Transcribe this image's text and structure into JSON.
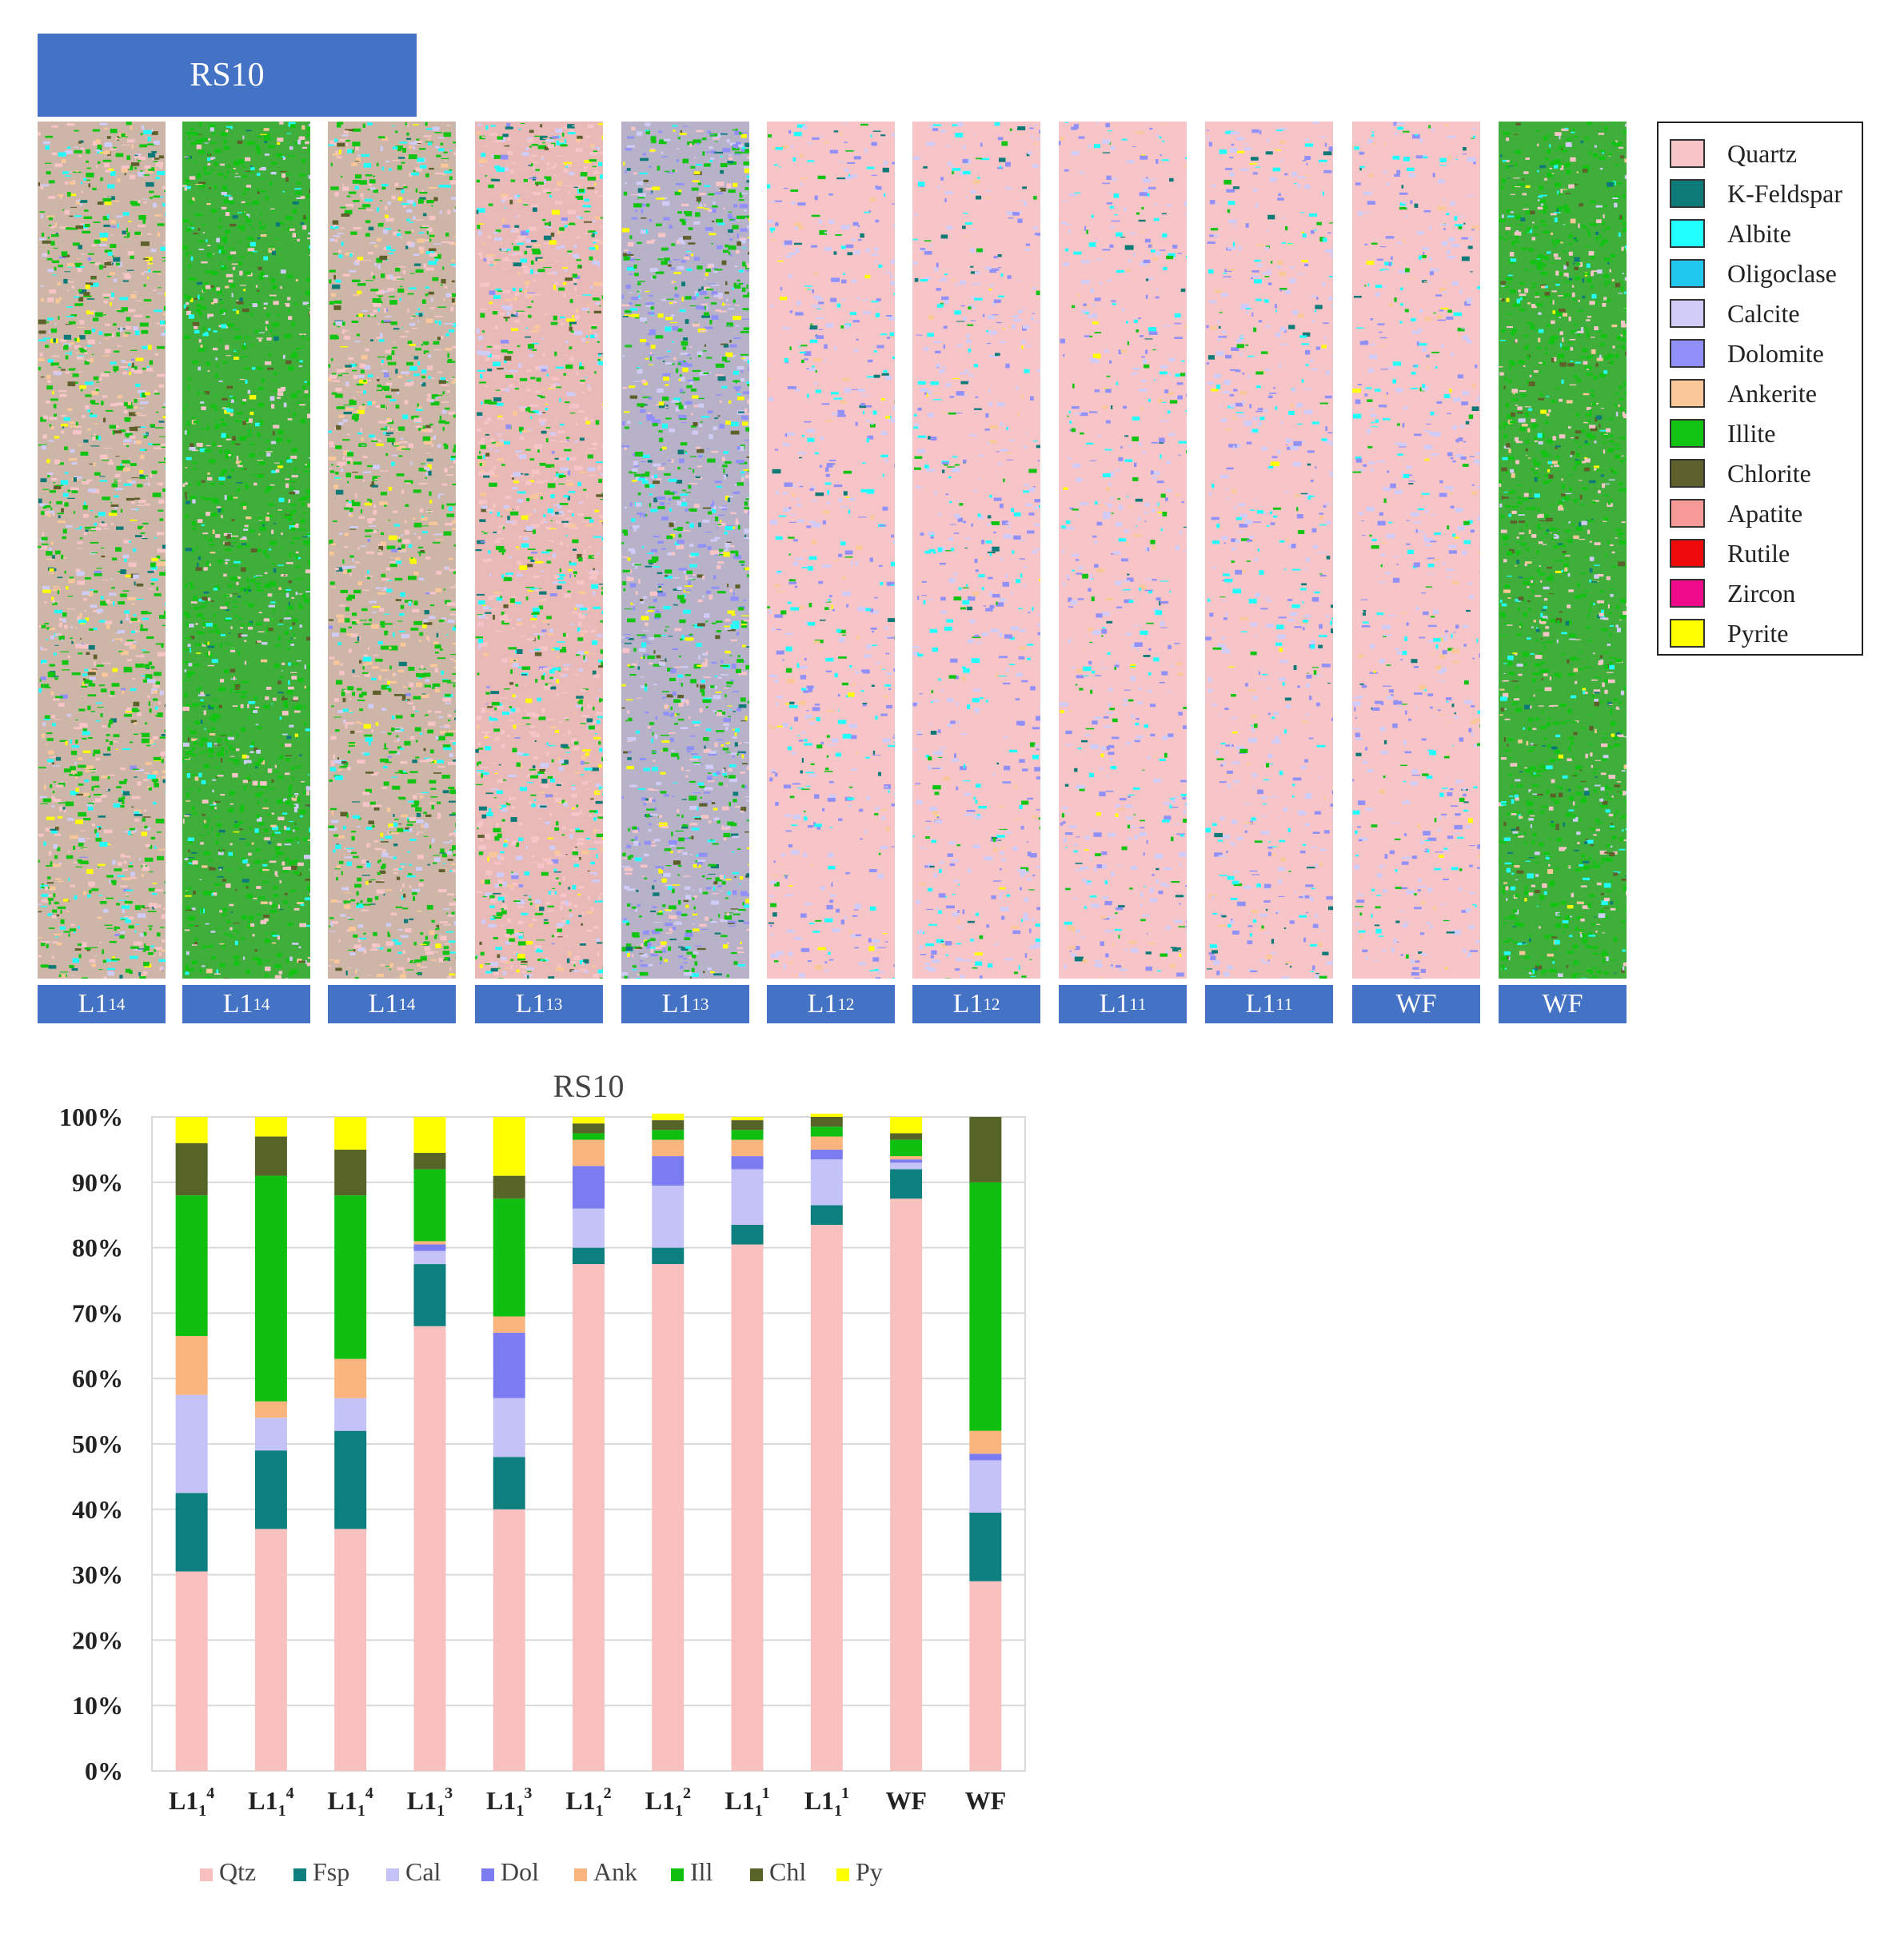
{
  "header": {
    "title": "RS10"
  },
  "cores": [
    {
      "label_base": "L1",
      "label_sub": "1",
      "label_sup": "4",
      "palette": "mixed"
    },
    {
      "label_base": "L1",
      "label_sub": "1",
      "label_sup": "4",
      "palette": "illite"
    },
    {
      "label_base": "L1",
      "label_sub": "1",
      "label_sup": "4",
      "palette": "mixed"
    },
    {
      "label_base": "L1",
      "label_sub": "1",
      "label_sup": "3",
      "palette": "quartz-mixed"
    },
    {
      "label_base": "L1",
      "label_sub": "1",
      "label_sup": "3",
      "palette": "carbonate-mixed"
    },
    {
      "label_base": "L1",
      "label_sub": "1",
      "label_sup": "2",
      "palette": "quartz"
    },
    {
      "label_base": "L1",
      "label_sub": "1",
      "label_sup": "2",
      "palette": "quartz"
    },
    {
      "label_base": "L1",
      "label_sub": "1",
      "label_sup": "1",
      "palette": "quartz"
    },
    {
      "label_base": "L1",
      "label_sub": "1",
      "label_sup": "1",
      "palette": "quartz"
    },
    {
      "label_base": "WF",
      "label_sub": "",
      "label_sup": "",
      "palette": "quartz"
    },
    {
      "label_base": "WF",
      "label_sub": "",
      "label_sup": "",
      "palette": "illite"
    }
  ],
  "legend": [
    {
      "name": "Quartz",
      "color": "#f7c4c7"
    },
    {
      "name": "K-Feldspar",
      "color": "#0e7a78"
    },
    {
      "name": "Albite",
      "color": "#22ffff"
    },
    {
      "name": "Oligoclase",
      "color": "#20c8f0"
    },
    {
      "name": "Calcite",
      "color": "#d0ccf8"
    },
    {
      "name": "Dolomite",
      "color": "#9090f8"
    },
    {
      "name": "Ankerite",
      "color": "#fac898"
    },
    {
      "name": "Illite",
      "color": "#12c412"
    },
    {
      "name": "Chlorite",
      "color": "#5e602c"
    },
    {
      "name": "Apatite",
      "color": "#f89a98"
    },
    {
      "name": "Rutile",
      "color": "#ee0a0a"
    },
    {
      "name": "Zircon",
      "color": "#ee0a8a"
    },
    {
      "name": "Pyrite",
      "color": "#ffff00"
    }
  ],
  "chart_data": {
    "type": "bar",
    "stacked": true,
    "title": "RS10",
    "xlabel": "",
    "ylabel": "",
    "ylim": [
      0,
      100
    ],
    "yticks": [
      "0%",
      "10%",
      "20%",
      "30%",
      "40%",
      "50%",
      "60%",
      "70%",
      "80%",
      "90%",
      "100%"
    ],
    "categories": [
      {
        "base": "L1",
        "sub": "1",
        "sup": "4"
      },
      {
        "base": "L1",
        "sub": "1",
        "sup": "4"
      },
      {
        "base": "L1",
        "sub": "1",
        "sup": "4"
      },
      {
        "base": "L1",
        "sub": "1",
        "sup": "3"
      },
      {
        "base": "L1",
        "sub": "1",
        "sup": "3"
      },
      {
        "base": "L1",
        "sub": "1",
        "sup": "2"
      },
      {
        "base": "L1",
        "sub": "1",
        "sup": "2"
      },
      {
        "base": "L1",
        "sub": "1",
        "sup": "1"
      },
      {
        "base": "L1",
        "sub": "1",
        "sup": "1"
      },
      {
        "base": "WF",
        "sub": "",
        "sup": ""
      },
      {
        "base": "WF",
        "sub": "",
        "sup": ""
      }
    ],
    "series": [
      {
        "name": "Qtz",
        "color": "#f9c0c0",
        "values": [
          30.5,
          37,
          37,
          68,
          40,
          77.5,
          77.5,
          80.5,
          83.5,
          87.5,
          29
        ]
      },
      {
        "name": "Fsp",
        "color": "#0e7f7f",
        "values": [
          12,
          12,
          15,
          9.5,
          8,
          2.5,
          2.5,
          3,
          3,
          4.5,
          10.5
        ]
      },
      {
        "name": "Cal",
        "color": "#c4c2f6",
        "values": [
          15,
          5,
          5,
          2,
          9,
          6,
          9.5,
          8.5,
          7,
          1,
          8
        ]
      },
      {
        "name": "Dol",
        "color": "#7c7cf0",
        "values": [
          0,
          0,
          0,
          1,
          10,
          6.5,
          4.5,
          2,
          1.5,
          0.5,
          1
        ]
      },
      {
        "name": "Ank",
        "color": "#fab47e",
        "values": [
          9,
          2.5,
          6,
          0.5,
          2.5,
          4,
          2.5,
          2.5,
          2,
          0.5,
          3.5
        ]
      },
      {
        "name": "Ill",
        "color": "#10c010",
        "values": [
          21.5,
          34.5,
          25,
          11,
          18,
          1,
          1.5,
          1.5,
          1.5,
          2.5,
          38
        ]
      },
      {
        "name": "Chl",
        "color": "#566428",
        "values": [
          8,
          6,
          7,
          2.5,
          3.5,
          1.5,
          1.5,
          1.5,
          1.5,
          1,
          10
        ]
      },
      {
        "name": "Py",
        "color": "#ffff00",
        "values": [
          4,
          3,
          5,
          5.5,
          9,
          1,
          1,
          0.5,
          0.5,
          2.5,
          0
        ]
      }
    ],
    "legend_position": "bottom"
  }
}
